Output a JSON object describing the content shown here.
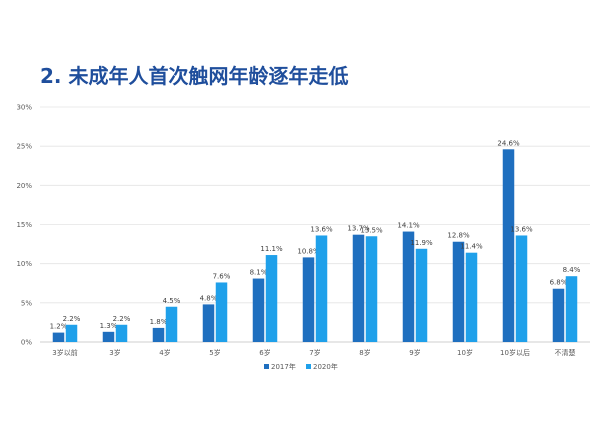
{
  "slide": {
    "title": "2. 未成年人首次触网年龄逐年走低"
  },
  "chart_data": {
    "type": "bar",
    "categories": [
      "3岁以前",
      "3岁",
      "4岁",
      "5岁",
      "6岁",
      "7岁",
      "8岁",
      "9岁",
      "10岁",
      "10岁以后",
      "不清楚"
    ],
    "series": [
      {
        "name": "2017年",
        "color": "#1f6fbf",
        "values": [
          1.2,
          1.3,
          1.8,
          4.8,
          8.1,
          10.8,
          13.7,
          14.1,
          12.8,
          24.6,
          6.8
        ]
      },
      {
        "name": "2020年",
        "color": "#1fa0ea",
        "values": [
          2.2,
          2.2,
          4.5,
          7.6,
          11.1,
          13.6,
          13.5,
          11.9,
          11.4,
          13.6,
          8.4
        ]
      }
    ],
    "yticks": [
      "0%",
      "5%",
      "10%",
      "15%",
      "20%",
      "25%",
      "30%"
    ],
    "ylim": [
      0,
      30
    ],
    "grid": true,
    "legend": "bottom",
    "value_suffix": "%"
  }
}
